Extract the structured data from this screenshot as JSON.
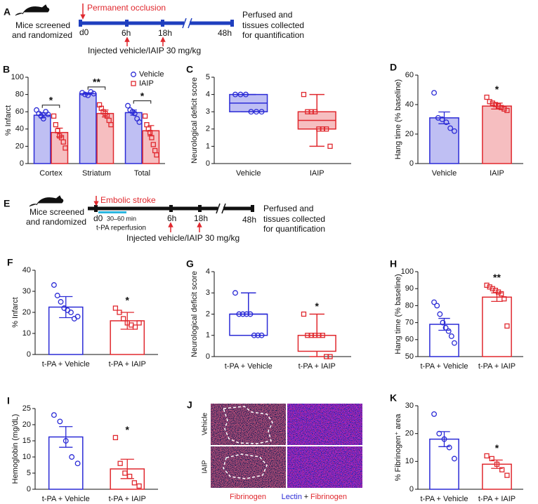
{
  "chart_data": [
    {
      "type": "bar",
      "panel": "B",
      "ylabel": "% Infarct",
      "categories": [
        "Cortex",
        "Striatum",
        "Total"
      ],
      "ylim": [
        0,
        100
      ],
      "yticks": [
        0,
        20,
        40,
        60,
        80,
        100
      ],
      "filled": true,
      "series": [
        {
          "name": "Vehicle",
          "color": "#2b2bd6",
          "values": [
            56,
            81,
            59
          ],
          "errors": [
            3,
            1,
            3
          ],
          "points": [
            [
              62,
              58,
              55,
              52,
              60,
              57
            ],
            [
              82,
              80,
              79,
              83,
              81
            ],
            [
              67,
              62,
              60,
              58,
              52,
              48
            ]
          ]
        },
        {
          "name": "IAIP",
          "color": "#e0282e",
          "values": [
            36,
            58,
            38
          ],
          "errors": [
            5,
            4,
            6
          ],
          "points": [
            [
              55,
              45,
              38,
              32,
              30,
              25,
              18
            ],
            [
              68,
              64,
              60,
              58,
              55,
              50,
              45
            ],
            [
              55,
              45,
              40,
              36,
              30,
              22,
              15,
              10
            ]
          ]
        }
      ],
      "significance": [
        "*",
        "**",
        "*"
      ]
    },
    {
      "type": "box",
      "panel": "C",
      "ylabel": "Neurological deficit score",
      "categories": [
        "Vehicle",
        "IAIP"
      ],
      "ylim": [
        0,
        5
      ],
      "yticks": [
        0,
        1,
        2,
        3,
        4,
        5
      ],
      "filled": true,
      "colors": [
        "#2b2bd6",
        "#e0282e"
      ],
      "boxes": [
        {
          "min": 3,
          "q1": 3,
          "median": 3.5,
          "q3": 4,
          "max": 4
        },
        {
          "min": 1,
          "q1": 2,
          "median": 2.5,
          "q3": 3,
          "max": 4
        }
      ],
      "points": [
        [
          4,
          4,
          4,
          3,
          3,
          3
        ],
        [
          4,
          3,
          3,
          3,
          2,
          2,
          2,
          1
        ]
      ]
    },
    {
      "type": "bar",
      "panel": "D",
      "ylabel": "Hang  time (% baseline)",
      "categories": [
        "Vehicle",
        "IAIP"
      ],
      "ylim": [
        0,
        60
      ],
      "yticks": [
        0,
        20,
        40,
        60
      ],
      "filled": true,
      "colors": [
        "#2b2bd6",
        "#e0282e"
      ],
      "values": [
        31,
        39
      ],
      "errors": [
        4,
        2
      ],
      "points": [
        [
          48,
          31,
          30,
          28,
          24,
          22
        ],
        [
          45,
          42,
          41,
          40,
          39,
          38,
          37,
          36
        ]
      ],
      "significance": "*"
    },
    {
      "type": "bar",
      "panel": "F",
      "ylabel": "% Infarct",
      "categories": [
        "t-PA + Vehicle",
        "t-PA + IAIP"
      ],
      "ylim": [
        0,
        40
      ],
      "yticks": [
        0,
        10,
        20,
        30,
        40
      ],
      "filled": false,
      "colors": [
        "#2b2bd6",
        "#e0282e"
      ],
      "values": [
        22.5,
        16
      ],
      "errors": [
        5,
        4
      ],
      "points": [
        [
          33,
          28,
          25,
          22,
          21,
          20,
          17,
          18
        ],
        [
          22,
          20,
          17,
          15,
          14,
          13,
          15
        ]
      ],
      "significance": "*"
    },
    {
      "type": "box",
      "panel": "G",
      "ylabel": "Neurological deficit score",
      "categories": [
        "t-PA + Vehicle",
        "t-PA + IAIP"
      ],
      "ylim": [
        0,
        4
      ],
      "yticks": [
        0,
        1,
        2,
        3,
        4
      ],
      "filled": false,
      "colors": [
        "#2b2bd6",
        "#e0282e"
      ],
      "boxes": [
        {
          "min": 1,
          "q1": 1,
          "median": 2,
          "q3": 2,
          "max": 3
        },
        {
          "min": 0,
          "q1": 0.25,
          "median": 1,
          "q3": 1,
          "max": 2
        }
      ],
      "points": [
        [
          3,
          2,
          2,
          2,
          2,
          1,
          1,
          1
        ],
        [
          2,
          1,
          1,
          1,
          1,
          1,
          0,
          0
        ]
      ],
      "significance": "*"
    },
    {
      "type": "bar",
      "panel": "H",
      "ylabel": "Hang  time (% baseline)",
      "categories": [
        "t-PA + Vehicle",
        "t-PA + IAIP"
      ],
      "ylim": [
        50,
        100
      ],
      "yticks": [
        50,
        60,
        70,
        80,
        90,
        100
      ],
      "filled": false,
      "colors": [
        "#2b2bd6",
        "#e0282e"
      ],
      "values": [
        69,
        85
      ],
      "errors": [
        3.5,
        2.5
      ],
      "points": [
        [
          82,
          80,
          75,
          70,
          67,
          65,
          62,
          58
        ],
        [
          92,
          91,
          90,
          89,
          88,
          87,
          84,
          68
        ]
      ],
      "significance": "**"
    },
    {
      "type": "bar",
      "panel": "I",
      "ylabel": "Hemoglobin (mg/dL)",
      "categories": [
        "t-PA + Vehicle",
        "t-PA + IAIP"
      ],
      "ylim": [
        0,
        25
      ],
      "yticks": [
        0,
        5,
        10,
        15,
        20,
        25
      ],
      "filled": false,
      "colors": [
        "#2b2bd6",
        "#e0282e"
      ],
      "values": [
        16.2,
        6.3
      ],
      "errors": [
        3.2,
        3
      ],
      "points": [
        [
          23,
          21,
          15,
          10,
          8
        ],
        [
          16,
          8,
          5,
          4,
          2,
          1
        ]
      ],
      "significance": "*"
    },
    {
      "type": "bar",
      "panel": "K",
      "ylabel": "% Fibrinogen⁺ area",
      "categories": [
        "t-PA + Vehicle",
        "t-PA + IAIP"
      ],
      "ylim": [
        0,
        30
      ],
      "yticks": [
        0,
        10,
        20,
        30
      ],
      "filled": false,
      "colors": [
        "#2b2bd6",
        "#e0282e"
      ],
      "values": [
        18,
        9
      ],
      "errors": [
        2.7,
        1.5
      ],
      "points": [
        [
          27,
          20,
          18,
          15,
          11
        ],
        [
          12,
          11,
          9,
          7,
          5
        ]
      ],
      "significance": "*"
    }
  ],
  "timelines": [
    {
      "panel": "A",
      "event": "Permanent occlusion",
      "left": [
        "Mice screened",
        "and randomized"
      ],
      "marks": [
        "d0",
        "6h",
        "18h",
        "48h"
      ],
      "injection": "Injected vehicle/IAIP 30 mg/kg",
      "right": [
        "Perfused and",
        "tissues collected",
        "for quantification"
      ]
    },
    {
      "panel": "E",
      "event": "Embolic stroke",
      "left": [
        "Mice screened",
        "and randomized"
      ],
      "marks": [
        "d0",
        "6h",
        "18h",
        "48h"
      ],
      "reperfusion": [
        "30–60 min",
        "t-PA reperfusion"
      ],
      "injection": "Injected vehicle/IAIP 30 mg/kg",
      "right": [
        "Perfused and",
        "tissues collected",
        "for quantification"
      ]
    }
  ],
  "images": {
    "panel": "J",
    "rows": [
      "Vehicle",
      "IAIP"
    ],
    "captions": [
      "Fibrinogen",
      "Lectin",
      "+",
      "Fibrinogen"
    ]
  }
}
